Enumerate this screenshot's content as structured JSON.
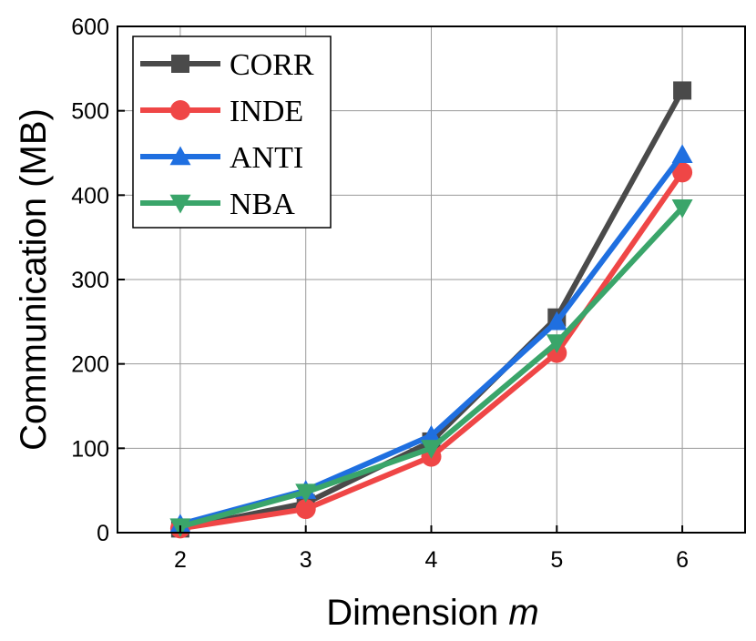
{
  "chart_data": {
    "type": "line",
    "title": "",
    "xlabel": "Dimension",
    "xlabel_var": "m",
    "ylabel": "Communication (MB)",
    "x": [
      2,
      3,
      4,
      5,
      6
    ],
    "x_ticks": [
      "2",
      "3",
      "4",
      "5",
      "6"
    ],
    "xlim": [
      1.5,
      6.5
    ],
    "ylim": [
      0,
      600
    ],
    "y_ticks": [
      "0",
      "100",
      "200",
      "300",
      "400",
      "500",
      "600"
    ],
    "grid": true,
    "legend_position": "top-left",
    "series": [
      {
        "name": "CORR",
        "color": "#4a4a4a",
        "marker": "square",
        "values": [
          5,
          35,
          108,
          255,
          524
        ]
      },
      {
        "name": "INDE",
        "color": "#ef4646",
        "marker": "circle",
        "values": [
          5,
          28,
          90,
          213,
          427
        ]
      },
      {
        "name": "ANTI",
        "color": "#1f6fe0",
        "marker": "triangle-up",
        "values": [
          10,
          50,
          115,
          250,
          448
        ]
      },
      {
        "name": "NBA",
        "color": "#3aa56a",
        "marker": "triangle-down",
        "values": [
          7,
          48,
          100,
          225,
          385
        ]
      }
    ]
  }
}
